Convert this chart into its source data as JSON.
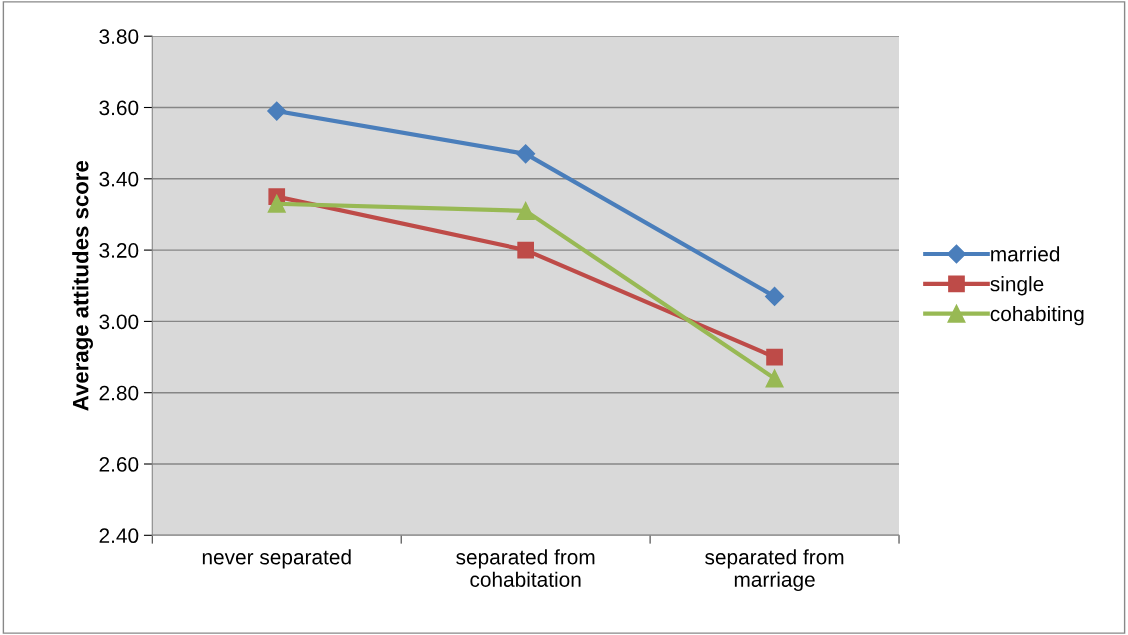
{
  "chart_data": {
    "type": "line",
    "ylabel": "Average attitudes score",
    "categories": [
      "never separated",
      "separated from\ncohabitation",
      "separated from\nmarriage"
    ],
    "series": [
      {
        "name": "married",
        "color": "#4a7ebb",
        "marker": "diamond",
        "values": [
          3.59,
          3.47,
          3.07
        ]
      },
      {
        "name": "single",
        "color": "#be4b48",
        "marker": "square",
        "values": [
          3.35,
          3.2,
          2.9
        ]
      },
      {
        "name": "cohabiting",
        "color": "#98b954",
        "marker": "triangle",
        "values": [
          3.33,
          3.31,
          2.84
        ]
      }
    ],
    "ylim": [
      2.4,
      3.8
    ],
    "yticks": [
      {
        "value": 2.4,
        "label": "2.40"
      },
      {
        "value": 2.6,
        "label": "2.60"
      },
      {
        "value": 2.8,
        "label": "2.80"
      },
      {
        "value": 3.0,
        "label": "3.00"
      },
      {
        "value": 3.2,
        "label": "3.20"
      },
      {
        "value": 3.4,
        "label": "3.40"
      },
      {
        "value": 3.6,
        "label": "3.60"
      },
      {
        "value": 3.8,
        "label": "3.80"
      }
    ],
    "grid": "y",
    "legend": "right"
  }
}
